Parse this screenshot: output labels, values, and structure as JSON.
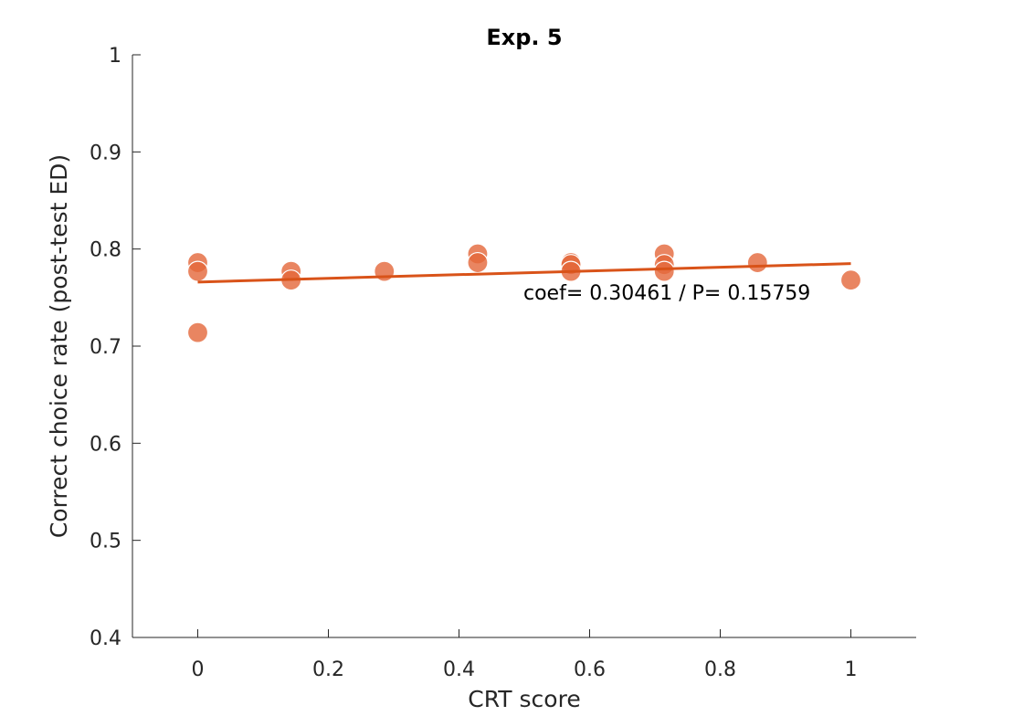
{
  "chart_data": {
    "type": "scatter",
    "title": "Exp. 5",
    "xlabel": "CRT score",
    "ylabel": "Correct choice rate (post-test ED)",
    "xlim": [
      -0.1,
      1.1
    ],
    "ylim": [
      0.4,
      1.0
    ],
    "xticks": [
      "0",
      "0.2",
      "0.4",
      "0.6",
      "0.8",
      "1"
    ],
    "xtick_values": [
      0,
      0.2,
      0.4,
      0.6,
      0.8,
      1
    ],
    "yticks": [
      "0.4",
      "0.5",
      "0.6",
      "0.7",
      "0.8",
      "0.9",
      "1"
    ],
    "ytick_values": [
      0.4,
      0.5,
      0.6,
      0.7,
      0.8,
      0.9,
      1.0
    ],
    "grid": false,
    "point_color": "#E3673A",
    "line_color": "#D95319",
    "points": {
      "x": [
        0,
        0,
        0,
        0.1429,
        0.1429,
        0.2857,
        0.4286,
        0.4286,
        0.5714,
        0.5714,
        0.5714,
        0.7143,
        0.7143,
        0.7143,
        0.8571,
        1.0
      ],
      "y": [
        0.786,
        0.777,
        0.714,
        0.777,
        0.768,
        0.777,
        0.795,
        0.786,
        0.786,
        0.784,
        0.777,
        0.795,
        0.784,
        0.777,
        0.786,
        0.768
      ]
    },
    "fit_line": {
      "x": [
        0,
        1
      ],
      "y": [
        0.766,
        0.785
      ]
    },
    "annotation": "coef= 0.30461 / P= 0.15759"
  }
}
